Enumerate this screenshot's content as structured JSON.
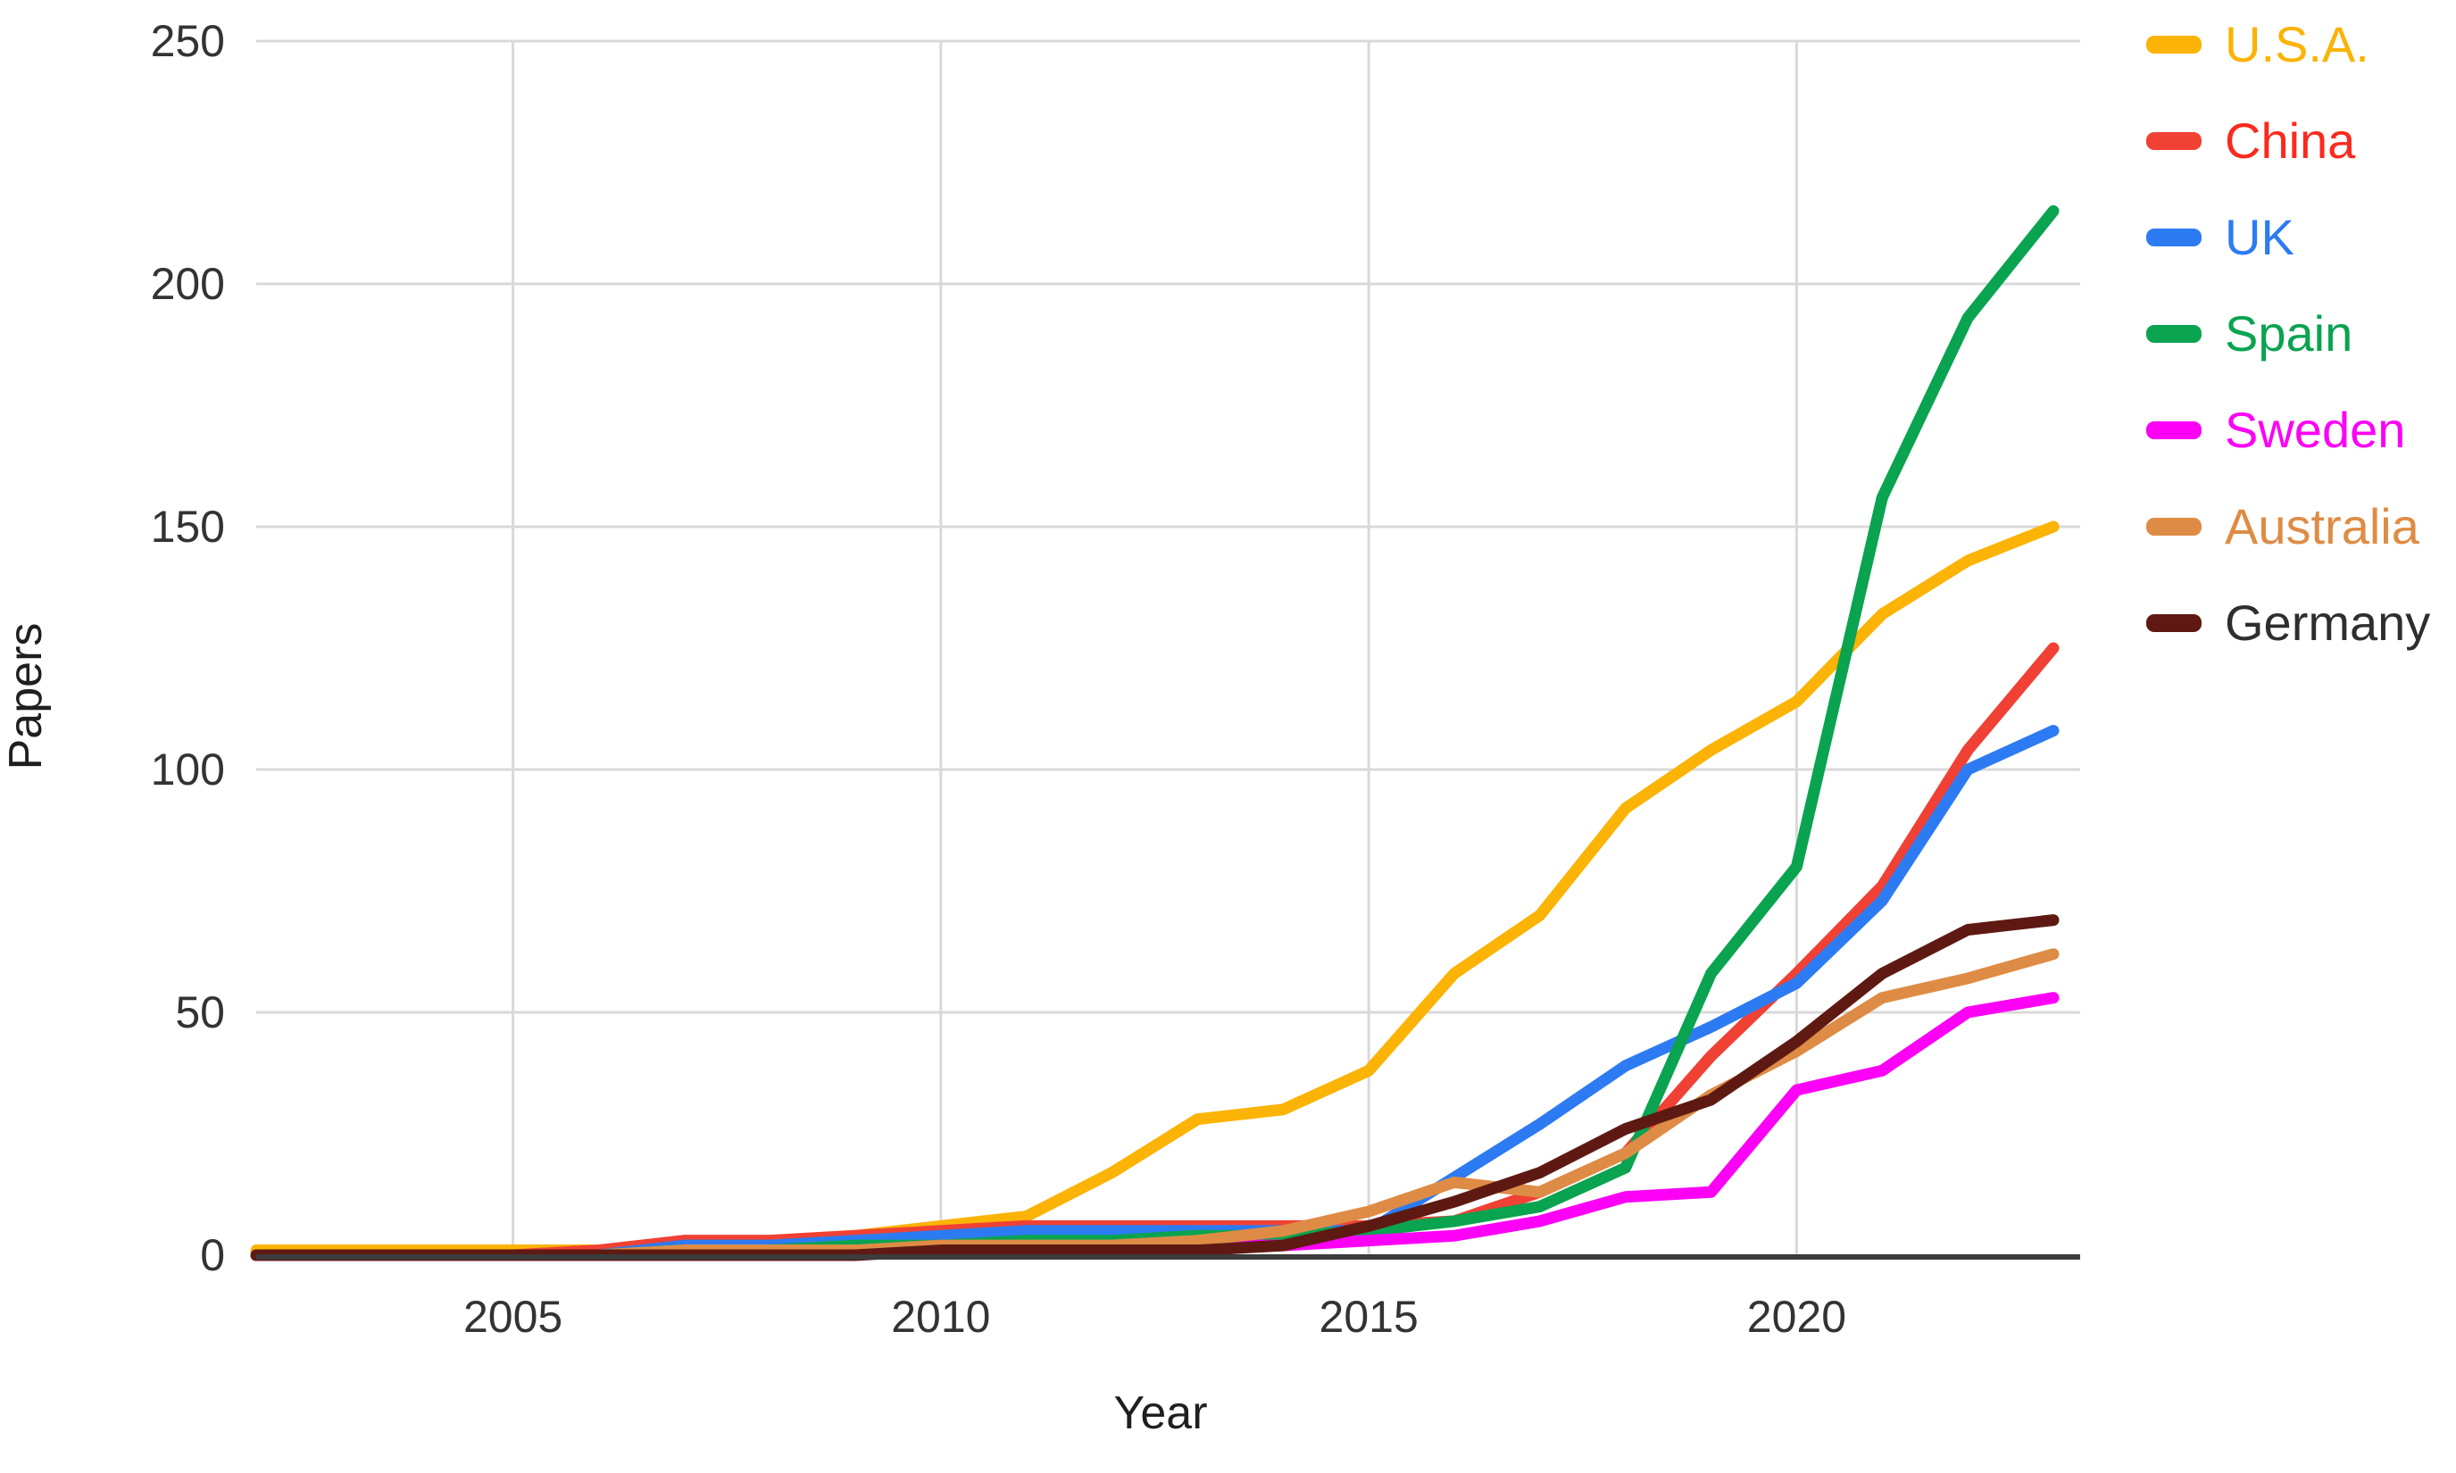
{
  "chart_data": {
    "type": "line",
    "title": "",
    "xlabel": "Year",
    "ylabel": "Papers",
    "x": [
      2002,
      2003,
      2004,
      2005,
      2006,
      2007,
      2008,
      2009,
      2010,
      2011,
      2012,
      2013,
      2014,
      2015,
      2016,
      2017,
      2018,
      2019,
      2020,
      2021,
      2022,
      2023
    ],
    "x_ticks": [
      2005,
      2010,
      2015,
      2020
    ],
    "y_ticks": [
      0,
      50,
      100,
      150,
      200,
      250
    ],
    "xlim": [
      2002,
      2023
    ],
    "ylim": [
      0,
      250
    ],
    "grid": true,
    "legend_position": "right",
    "colors": {
      "axis_line": "#3c3c3c",
      "gridline": "#d9d9d9",
      "tick_text": "#333333"
    },
    "series": [
      {
        "name": "U.S.A.",
        "color": "#FBB305",
        "label_color": "#FBB305",
        "values": [
          1,
          1,
          1,
          1,
          1,
          2,
          3,
          4,
          6,
          8,
          17,
          28,
          30,
          38,
          58,
          70,
          92,
          104,
          114,
          132,
          143,
          150
        ]
      },
      {
        "name": "China",
        "color": "#F04134",
        "label_color": "#FA2A1E",
        "values": [
          0,
          0,
          0,
          0,
          1,
          3,
          3,
          4,
          5,
          6,
          6,
          6,
          6,
          6,
          7,
          13,
          21,
          41,
          58,
          76,
          104,
          125
        ]
      },
      {
        "name": "UK",
        "color": "#2D7BF2",
        "label_color": "#2D7BF2",
        "values": [
          0,
          0,
          0,
          0,
          0,
          2,
          2,
          3,
          4,
          5,
          5,
          5,
          5,
          5,
          16,
          27,
          39,
          47,
          56,
          73,
          100,
          108
        ]
      },
      {
        "name": "Spain",
        "color": "#0AA350",
        "label_color": "#0AA350",
        "values": [
          0,
          0,
          0,
          0,
          0,
          1,
          1,
          2,
          2,
          3,
          3,
          4,
          4,
          5,
          7,
          10,
          18,
          58,
          80,
          156,
          193,
          215
        ]
      },
      {
        "name": "Sweden",
        "color": "#FB00F5",
        "label_color": "#FB00F5",
        "values": [
          0,
          0,
          0,
          0,
          0,
          0,
          0,
          1,
          1,
          1,
          1,
          2,
          2,
          3,
          4,
          7,
          12,
          13,
          34,
          38,
          50,
          53
        ]
      },
      {
        "name": "Australia",
        "color": "#DE8C45",
        "label_color": "#DE8C45",
        "values": [
          0,
          0,
          0,
          0,
          0,
          1,
          1,
          1,
          2,
          2,
          2,
          3,
          5,
          9,
          15,
          13,
          21,
          33,
          42,
          53,
          57,
          62
        ]
      },
      {
        "name": "Germany",
        "color": "#5E1A12",
        "label_color": "#2e2e2e",
        "values": [
          0,
          0,
          0,
          0,
          0,
          0,
          0,
          0,
          1,
          1,
          1,
          1,
          2,
          6,
          11,
          17,
          26,
          32,
          44,
          58,
          67,
          69
        ]
      }
    ]
  }
}
